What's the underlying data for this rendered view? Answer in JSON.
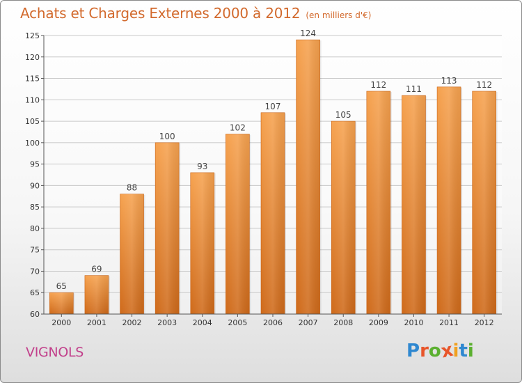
{
  "title": "Achats et Charges Externes 2000 à 2012",
  "subtitle": "(en milliers d'€)",
  "commune": "VIGNOLS",
  "logo": {
    "letters": [
      "P",
      "r",
      "o",
      "x",
      "i",
      "t",
      "i"
    ],
    "colors": [
      "#2f88d0",
      "#e8552a",
      "#5bb030",
      "#e8552a",
      "#f0a020",
      "#2f88d0",
      "#5bb030"
    ]
  },
  "chart_data": {
    "type": "bar",
    "categories": [
      "2000",
      "2001",
      "2002",
      "2003",
      "2004",
      "2005",
      "2006",
      "2007",
      "2008",
      "2009",
      "2010",
      "2011",
      "2012"
    ],
    "values": [
      65,
      69,
      88,
      100,
      93,
      102,
      107,
      124,
      105,
      112,
      111,
      113,
      112
    ],
    "data_labels": [
      "65",
      "69",
      "88",
      "100",
      "93",
      "102",
      "107",
      "124",
      "105",
      "112",
      "111",
      "113",
      "112"
    ],
    "ylim": [
      60,
      125
    ],
    "yticks": [
      60,
      65,
      70,
      75,
      80,
      85,
      90,
      95,
      100,
      105,
      110,
      115,
      120,
      125
    ],
    "title": "Achats et Charges Externes 2000 à 2012",
    "xlabel": "",
    "ylabel": "",
    "grid": true,
    "bar_color": "#ef8f38"
  }
}
